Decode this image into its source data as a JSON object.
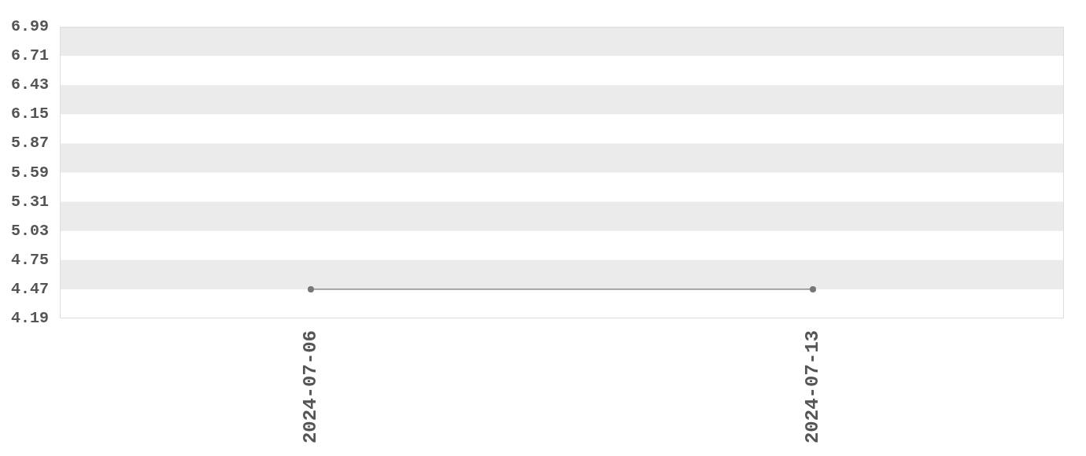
{
  "chart_data": {
    "type": "line",
    "categories": [
      "2024-07-06",
      "2024-07-13"
    ],
    "series": [
      {
        "color": "#777777",
        "values": [
          4.47,
          4.47
        ]
      }
    ],
    "ylim": [
      4.19,
      6.99
    ],
    "yticks": [
      4.19,
      4.47,
      4.75,
      5.03,
      5.31,
      5.59,
      5.87,
      6.15,
      6.43,
      6.71,
      6.99
    ],
    "bands": [
      {
        "axis": "y",
        "from": 4.47,
        "to": 4.75,
        "color": "#ebebeb"
      },
      {
        "axis": "y",
        "from": 5.03,
        "to": 5.31,
        "color": "#ebebeb"
      },
      {
        "axis": "y",
        "from": 5.59,
        "to": 5.87,
        "color": "#ebebeb"
      },
      {
        "axis": "y",
        "from": 6.15,
        "to": 6.43,
        "color": "#ebebeb"
      },
      {
        "axis": "y",
        "from": 6.71,
        "to": 6.99,
        "color": "#ebebeb"
      }
    ],
    "marker": "circle",
    "line_style": "solid"
  }
}
